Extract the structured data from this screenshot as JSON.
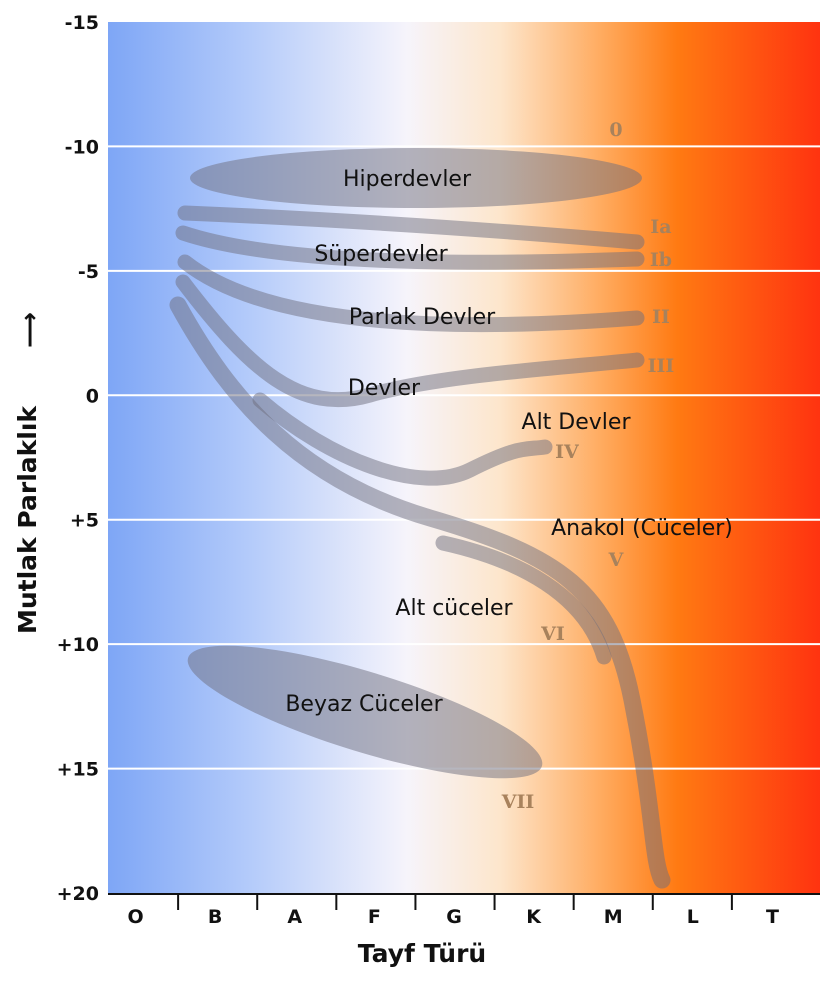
{
  "chart_data": {
    "type": "diagram",
    "xlabel": "Tayf Türü",
    "ylabel": "Mutlak Parlaklık",
    "ylabel_arrow": "⟶",
    "x_categories": [
      "O",
      "B",
      "A",
      "F",
      "G",
      "K",
      "M",
      "L",
      "T"
    ],
    "y_ticks": [
      "-15",
      "-10",
      "-5",
      "0",
      "+5",
      "+10",
      "+15",
      "+20"
    ],
    "ylim": [
      -15,
      20
    ],
    "y_inverted": true,
    "grid": "horizontal",
    "background_gradient": [
      "#7ea6f6",
      "#ffffff",
      "#ff8a1e",
      "#ff3310"
    ],
    "regions": [
      {
        "label": "Hiperdevler",
        "class": "0"
      },
      {
        "label": "Süperdevler",
        "class": [
          "Ia",
          "Ib"
        ]
      },
      {
        "label": "Parlak Devler",
        "class": "II"
      },
      {
        "label": "Devler",
        "class": "III"
      },
      {
        "label": "Alt Devler",
        "class": "IV"
      },
      {
        "label": "Anakol (Cüceler)",
        "class": "V"
      },
      {
        "label": "Alt cüceler",
        "class": "VI"
      },
      {
        "label": "Beyaz Cüceler",
        "class": "VII"
      }
    ],
    "luminosity_classes": [
      "0",
      "Ia",
      "Ib",
      "II",
      "III",
      "IV",
      "V",
      "VI",
      "VII"
    ]
  }
}
